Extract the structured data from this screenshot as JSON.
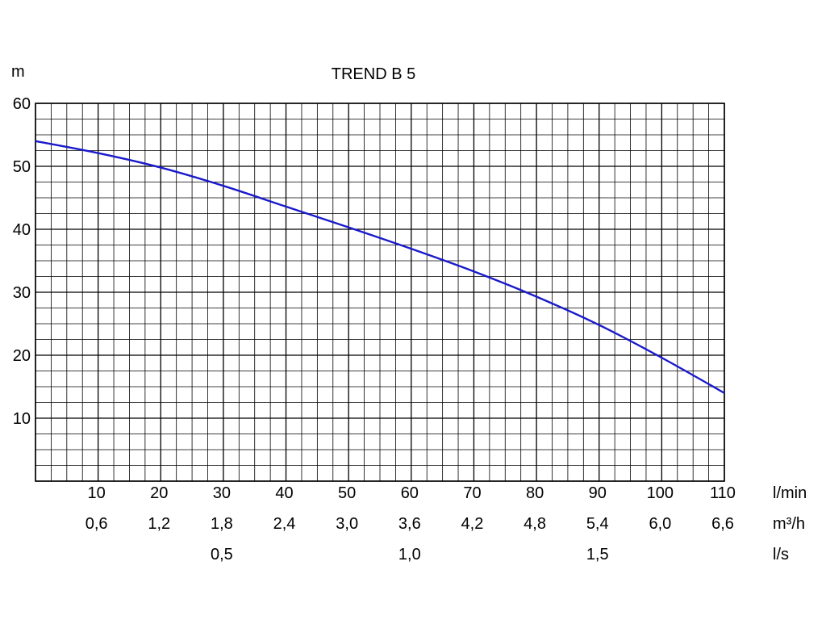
{
  "chart_data": {
    "type": "line",
    "title": "TREND B 5",
    "ylabel": "m",
    "ylim": [
      0,
      60
    ],
    "xlim": [
      0,
      110
    ],
    "y_ticks": [
      10,
      20,
      30,
      40,
      50,
      60
    ],
    "x_axes": [
      {
        "unit": "l/min",
        "ticks": [
          {
            "at": 10,
            "label": "10"
          },
          {
            "at": 20,
            "label": "20"
          },
          {
            "at": 30,
            "label": "30"
          },
          {
            "at": 40,
            "label": "40"
          },
          {
            "at": 50,
            "label": "50"
          },
          {
            "at": 60,
            "label": "60"
          },
          {
            "at": 70,
            "label": "70"
          },
          {
            "at": 80,
            "label": "80"
          },
          {
            "at": 90,
            "label": "90"
          },
          {
            "at": 100,
            "label": "100"
          },
          {
            "at": 110,
            "label": "110"
          }
        ]
      },
      {
        "unit": "m³/h",
        "ticks": [
          {
            "at": 10,
            "label": "0,6"
          },
          {
            "at": 20,
            "label": "1,2"
          },
          {
            "at": 30,
            "label": "1,8"
          },
          {
            "at": 40,
            "label": "2,4"
          },
          {
            "at": 50,
            "label": "3,0"
          },
          {
            "at": 60,
            "label": "3,6"
          },
          {
            "at": 70,
            "label": "4,2"
          },
          {
            "at": 80,
            "label": "4,8"
          },
          {
            "at": 90,
            "label": "5,4"
          },
          {
            "at": 100,
            "label": "6,0"
          },
          {
            "at": 110,
            "label": "6,6"
          }
        ]
      },
      {
        "unit": "l/s",
        "ticks": [
          {
            "at": 30,
            "label": "0,5"
          },
          {
            "at": 60,
            "label": "1,0"
          },
          {
            "at": 90,
            "label": "1,5"
          }
        ]
      }
    ],
    "grid": true,
    "grid_minor_divisions": 4,
    "series": [
      {
        "color": "#1a1acc",
        "points": [
          [
            0,
            54
          ],
          [
            10,
            52.1
          ],
          [
            20,
            49.8
          ],
          [
            30,
            46.9
          ],
          [
            40,
            43.6
          ],
          [
            50,
            40.3
          ],
          [
            60,
            36.9
          ],
          [
            70,
            33.3
          ],
          [
            80,
            29.3
          ],
          [
            90,
            24.8
          ],
          [
            100,
            19.6
          ],
          [
            110,
            14
          ]
        ]
      }
    ]
  }
}
